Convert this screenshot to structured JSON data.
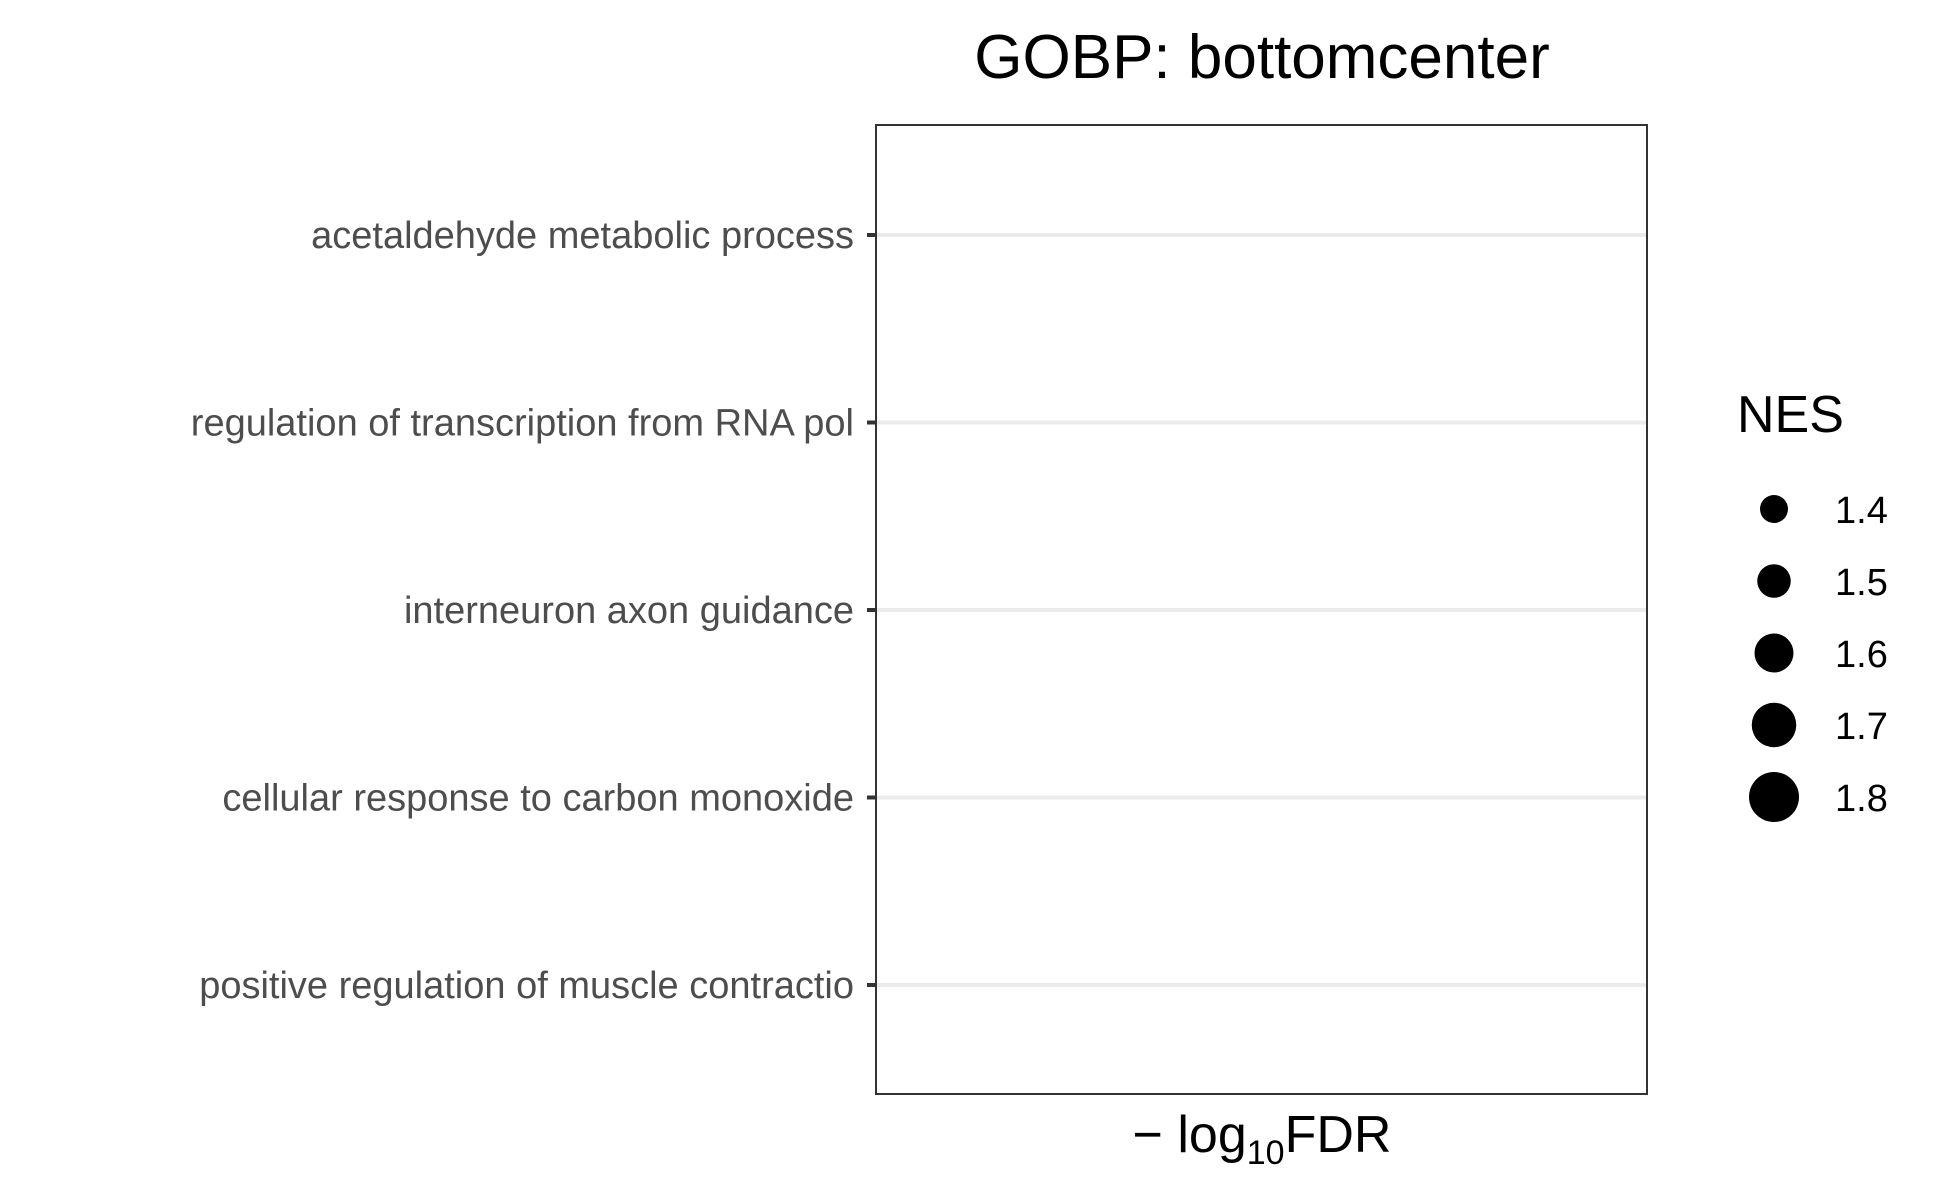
{
  "chart_data": {
    "type": "scatter",
    "title": "GOBP: bottomcenter",
    "xlabel": {
      "prefix": "− log",
      "subscript": "10",
      "suffix": "FDR"
    },
    "ylabel": "",
    "categories": [
      "acetaldehyde metabolic process",
      "regulation of transcription from RNA pol",
      "interneuron axon guidance",
      "cellular response to carbon monoxide",
      "positive regulation of muscle contractio"
    ],
    "points": [],
    "grid": true,
    "legend": {
      "title": "NES",
      "placement": "right",
      "entries": [
        {
          "label": "1.4",
          "value": 1.4
        },
        {
          "label": "1.5",
          "value": 1.5
        },
        {
          "label": "1.6",
          "value": 1.6
        },
        {
          "label": "1.7",
          "value": 1.7
        },
        {
          "label": "1.8",
          "value": 1.8
        }
      ]
    },
    "colors": {
      "panel_border": "#333333",
      "gridline": "#ebebeb",
      "tick": "#333333",
      "marker": "#000000"
    }
  }
}
